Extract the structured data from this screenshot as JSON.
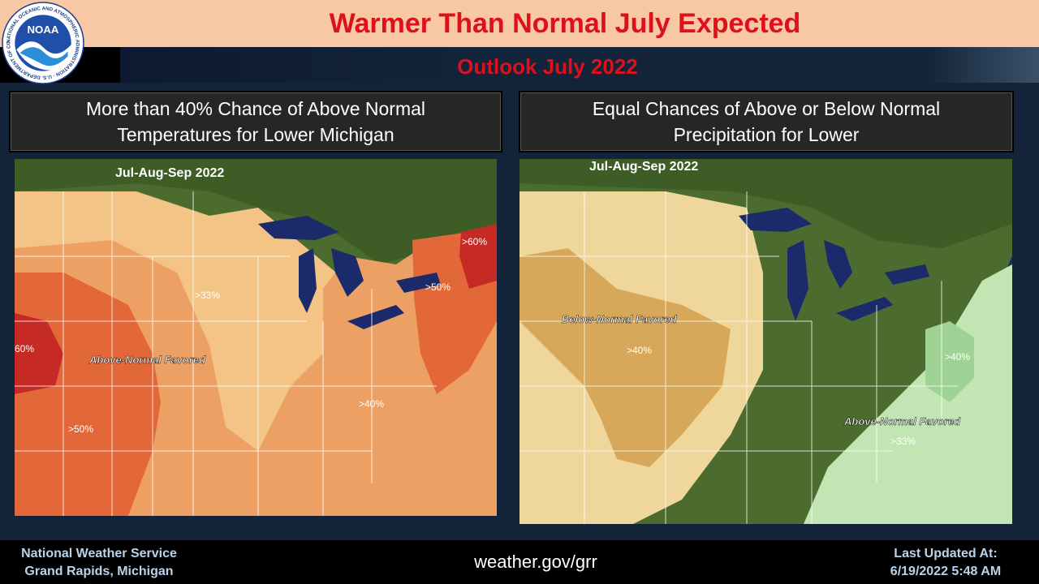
{
  "header": {
    "title": "Warmer Than Normal July Expected",
    "subtitle": "Outlook July 2022",
    "logo_text": "NOAA",
    "logo_ring_text": "NATIONAL OCEANIC AND ATMOSPHERIC ADMINISTRATION · U.S. DEPARTMENT OF COMMERCE"
  },
  "left_panel": {
    "heading_line1": "More than 40% Chance of Above Normal",
    "heading_line2": "Temperatures for Lower Michigan",
    "map_title": "Jul-Aug-Sep 2022",
    "favored_label": "Above-Normal Favored",
    "labels": [
      ">33%",
      ">40%",
      ">50%",
      ">50%",
      ">60%",
      "60%"
    ]
  },
  "right_panel": {
    "heading_line1": "Equal Chances of Above or Below Normal",
    "heading_line2": "Precipitation for Lower",
    "map_title": "Jul-Aug-Sep 2022",
    "below_label": "Below-Normal Favored",
    "above_label": "Above-Normal Favored",
    "labels": [
      ">40%",
      ">33%",
      ">40%"
    ]
  },
  "footer": {
    "org_line1": "National Weather Service",
    "org_line2": "Grand Rapids, Michigan",
    "url": "weather.gov/grr",
    "updated_label": "Last Updated At:",
    "updated_value": "6/19/2022 5:48 AM"
  },
  "colors": {
    "title_red": "#e0101a",
    "header_peach": "#f8c7a3",
    "temp_33": "#f3c486",
    "temp_40": "#eda063",
    "temp_50": "#e2683a",
    "temp_60": "#c52a25",
    "precip_below_33": "#efd69a",
    "precip_below_40": "#d7a85a",
    "precip_above_33": "#c2e5b4",
    "precip_above_40": "#9fd395"
  }
}
